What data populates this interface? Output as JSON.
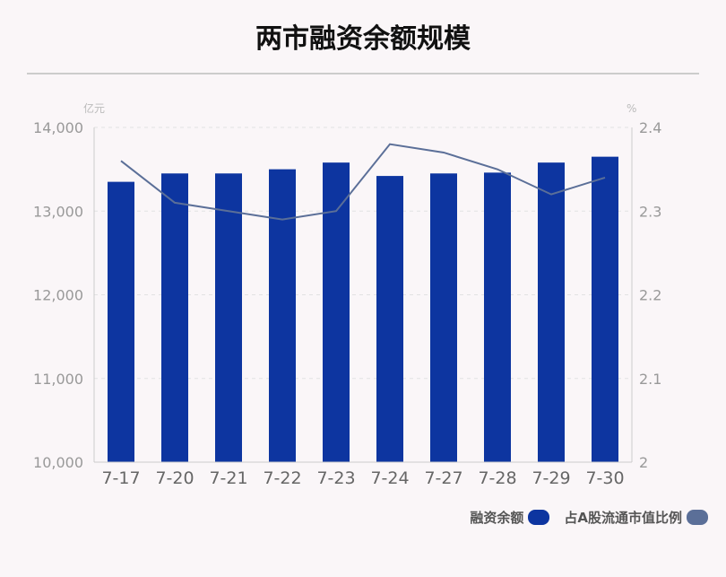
{
  "colors": {
    "bar": "#0d35a0",
    "line": "#5b6f98",
    "axis_text": "#999999",
    "x_text": "#666666",
    "grid": "#e2e2e2"
  },
  "chart_data": {
    "type": "bar",
    "title": "两市融资余额规模",
    "categories": [
      "7-17",
      "7-20",
      "7-21",
      "7-22",
      "7-23",
      "7-24",
      "7-27",
      "7-28",
      "7-29",
      "7-30"
    ],
    "series": [
      {
        "name": "融资余额",
        "type": "bar",
        "axis": "left",
        "values": [
          13350,
          13450,
          13450,
          13500,
          13580,
          13420,
          13450,
          13460,
          13580,
          13650
        ]
      },
      {
        "name": "占A股流通市值比例",
        "type": "line",
        "axis": "right",
        "values": [
          2.36,
          2.31,
          2.3,
          2.29,
          2.3,
          2.38,
          2.37,
          2.35,
          2.32,
          2.34
        ]
      }
    ],
    "y_left": {
      "unit": "亿元",
      "min": 10000,
      "max": 14000,
      "ticks": [
        10000,
        11000,
        12000,
        13000,
        14000
      ],
      "tick_labels": [
        "10,000",
        "11,000",
        "12,000",
        "13,000",
        "14,000"
      ]
    },
    "y_right": {
      "unit": "%",
      "min": 2.0,
      "max": 2.4,
      "ticks": [
        2.0,
        2.1,
        2.2,
        2.3,
        2.4
      ],
      "tick_labels": [
        "2",
        "2.1",
        "2.2",
        "2.3",
        "2.4"
      ]
    },
    "grid": true,
    "legend_position": "bottom-right"
  }
}
